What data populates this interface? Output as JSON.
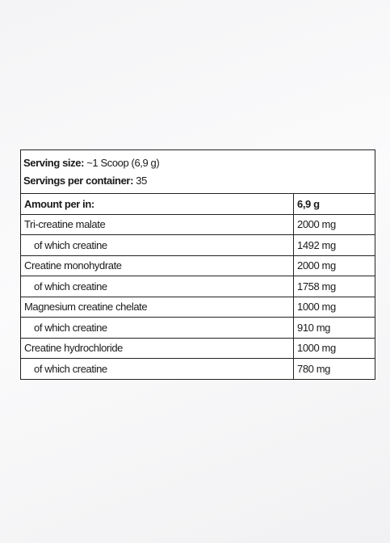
{
  "serving": {
    "size_label": "Serving size:",
    "size_value": "~1 Scoop (6,9 g)",
    "per_container_label": "Servings per container:",
    "per_container_value": "35"
  },
  "table": {
    "header": [
      "Amount per in:",
      "6,9 g"
    ],
    "rows": [
      [
        "Tri-creatine malate",
        "2000 mg"
      ],
      [
        "of which creatine",
        "1492 mg"
      ],
      [
        "Creatine monohydrate",
        "2000 mg"
      ],
      [
        "of which creatine",
        "1758 mg"
      ],
      [
        "Magnesium creatine chelate",
        "1000 mg"
      ],
      [
        "of which creatine",
        "910 mg"
      ],
      [
        "Creatine hydrochloride",
        "1000 mg"
      ],
      [
        "of which creatine",
        "780 mg"
      ]
    ]
  }
}
